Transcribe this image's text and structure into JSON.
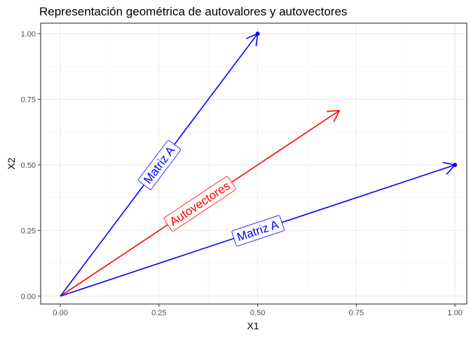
{
  "chart_data": {
    "type": "line",
    "title": "Representación geométrica de autovalores y autovectores",
    "xlabel": "X1",
    "ylabel": "X2",
    "xlim": [
      -0.05,
      1.03
    ],
    "ylim": [
      -0.03,
      1.04
    ],
    "x_ticks": [
      0.0,
      0.25,
      0.5,
      0.75,
      1.0
    ],
    "y_ticks": [
      0.0,
      0.25,
      0.5,
      0.75,
      1.0
    ],
    "x_tick_labels": [
      "0.00",
      "0.25",
      "0.50",
      "0.75",
      "1.00"
    ],
    "y_tick_labels": [
      "0.00",
      "0.25",
      "0.50",
      "0.75",
      "1.00"
    ],
    "grid": true,
    "series": [
      {
        "x": [
          0,
          0.5
        ],
        "y": [
          0,
          1.0
        ],
        "color": "#0000ff",
        "arrow": true,
        "endpoint_dot": true
      },
      {
        "x": [
          0,
          0.707
        ],
        "y": [
          0,
          0.707
        ],
        "color": "#ff0000",
        "arrow": true,
        "endpoint_dot": false
      },
      {
        "x": [
          0,
          1.0
        ],
        "y": [
          0,
          0.5
        ],
        "color": "#0000ff",
        "arrow": true,
        "endpoint_dot": true
      }
    ],
    "annotations": [
      {
        "text": "Matriz A",
        "x": 0.25,
        "y": 0.5,
        "color": "#0000ff",
        "along_series": 0
      },
      {
        "text": "Autovectores",
        "x": 0.353,
        "y": 0.353,
        "color": "#ff0000",
        "along_series": 1
      },
      {
        "text": "Matriz A",
        "x": 0.5,
        "y": 0.25,
        "color": "#0000ff",
        "along_series": 2
      }
    ]
  }
}
